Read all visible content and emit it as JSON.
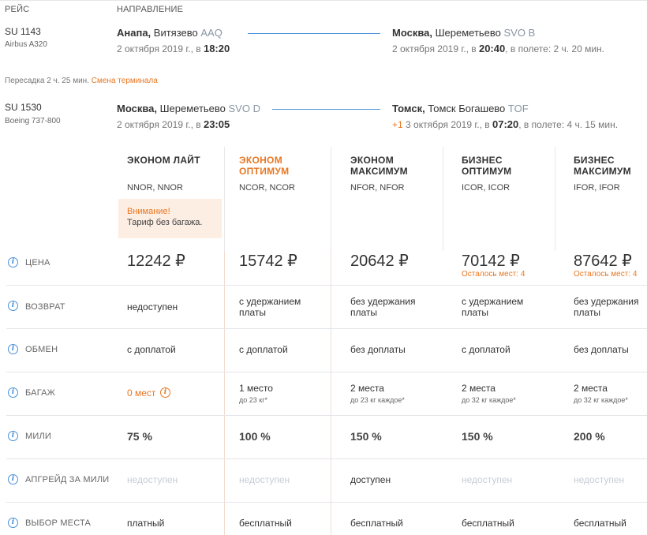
{
  "header": {
    "flight_col": "РЕЙС",
    "direction_col": "НАПРАВЛЕНИЕ"
  },
  "segments": [
    {
      "flight": "SU 1143",
      "aircraft": "Airbus A320",
      "dep_city": "Анапа,",
      "dep_airport": " Витязево ",
      "dep_code": "AAQ",
      "dep_date": "2 октября 2019 г., в ",
      "dep_time": "18:20",
      "arr_city": "Москва,",
      "arr_airport": " Шереметьево ",
      "arr_code": "SVO B",
      "arr_plus": "",
      "arr_date": "2 октября 2019 г., в ",
      "arr_time": "20:40",
      "duration": ", в полете: 2 ч. 20 мин."
    },
    {
      "flight": "SU 1530",
      "aircraft": "Boeing 737-800",
      "dep_city": "Москва,",
      "dep_airport": " Шереметьево ",
      "dep_code": "SVO D",
      "dep_date": "2 октября 2019 г., в ",
      "dep_time": "23:05",
      "arr_city": "Томск,",
      "arr_airport": " Томск Богашево ",
      "arr_code": "TOF",
      "arr_plus": "+1",
      "arr_date": " 3 октября 2019 г., в ",
      "arr_time": "07:20",
      "duration": ", в полете: 4 ч. 15 мин."
    }
  ],
  "transfer": {
    "text": "Пересадка 2 ч. 25 мин.",
    "warning": "Смена терминала"
  },
  "tariffs": [
    {
      "name": "ЭКОНОМ ЛАЙТ",
      "codes": "NNOR, NNOR"
    },
    {
      "name": "ЭКОНОМ ОПТИМУМ",
      "codes": "NCOR, NCOR"
    },
    {
      "name": "ЭКОНОМ МАКСИМУМ",
      "codes": "NFOR, NFOR"
    },
    {
      "name": "БИЗНЕС ОПТИМУМ",
      "codes": "ICOR, ICOR"
    },
    {
      "name": "БИЗНЕС МАКСИМУМ",
      "codes": "IFOR, IFOR"
    }
  ],
  "notice": {
    "title": "Внимание!",
    "text": "Тариф без багажа."
  },
  "rows": {
    "price": {
      "label": "ЦЕНА",
      "values": [
        "12242 ₽",
        "15742 ₽",
        "20642 ₽",
        "70142 ₽",
        "87642 ₽"
      ],
      "seats": [
        "",
        "",
        "",
        "Осталось мест: 4",
        "Осталось мест: 4"
      ]
    },
    "refund": {
      "label": "ВОЗВРАТ",
      "line1": [
        "недоступен",
        "с удержанием",
        "без удержания",
        "с удержанием",
        "без удержания"
      ],
      "line2": [
        "",
        "платы",
        "платы",
        "платы",
        "платы"
      ]
    },
    "exchange": {
      "label": "ОБМЕН",
      "values": [
        "с доплатой",
        "с доплатой",
        "без доплаты",
        "с доплатой",
        "без доплаты"
      ]
    },
    "baggage": {
      "label": "БАГАЖ",
      "line1": [
        "0 мест",
        "1 место",
        "2 места",
        "2 места",
        "2 места"
      ],
      "line2": [
        "",
        "до 23 кг*",
        "до 23 кг каждое*",
        "до 32 кг каждое*",
        "до 32 кг каждое*"
      ]
    },
    "miles": {
      "label": "МИЛИ",
      "values": [
        "75 %",
        "100 %",
        "150 %",
        "150 %",
        "200 %"
      ]
    },
    "upgrade": {
      "label": "АПГРЕЙД ЗА МИЛИ",
      "values": [
        "недоступен",
        "недоступен",
        "доступен",
        "недоступен",
        "недоступен"
      ]
    },
    "seat_choice": {
      "label": "ВЫБОР МЕСТА",
      "values": [
        "платный",
        "бесплатный",
        "бесплатный",
        "бесплатный",
        "бесплатный"
      ]
    }
  },
  "colors": {
    "accent_orange": "#e87722",
    "link_blue": "#4a90d9",
    "muted": "#c5cdd6"
  }
}
